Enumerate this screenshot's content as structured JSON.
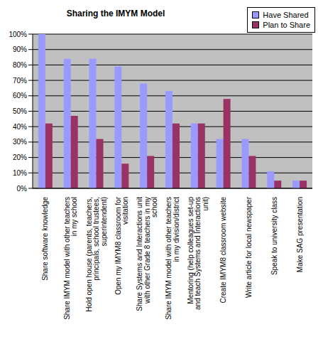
{
  "chart_data": {
    "type": "bar",
    "title": "Sharing the IMYM Model",
    "categories": [
      "Share software knowledge",
      "Share IMYM model with other teachers in my school",
      "Hold open house (parents, teachers, principals, school trustees, superintendent)",
      "Open my IMYM8 classroom for visitation",
      "Share Systems and Interactions unit with other Grade 8 teachers in my school",
      "Share IMYM model with other teachers in my division/district",
      "Mentoring (help colleagues set-up and teach Systems and Interactions unit)",
      "Create IMYM8 classroom website",
      "Write article for local newspaper",
      "Speak to university class",
      "Make SAG presentation"
    ],
    "series": [
      {
        "name": "Have Shared",
        "color": "#9999ff",
        "values": [
          100,
          84,
          84,
          79,
          68,
          63,
          42,
          32,
          32,
          11,
          5
        ]
      },
      {
        "name": "Plan to Share",
        "color": "#993366",
        "values": [
          42,
          47,
          32,
          16,
          21,
          42,
          42,
          58,
          21,
          5,
          5
        ]
      }
    ],
    "ylim": [
      0,
      100
    ],
    "yticks": [
      {
        "value": 0,
        "label": "0%"
      },
      {
        "value": 10,
        "label": "10%"
      },
      {
        "value": 20,
        "label": "20%"
      },
      {
        "value": 30,
        "label": "30%"
      },
      {
        "value": 40,
        "label": "40%"
      },
      {
        "value": 50,
        "label": "50%"
      },
      {
        "value": 60,
        "label": "60%"
      },
      {
        "value": 70,
        "label": "70%"
      },
      {
        "value": 80,
        "label": "80%"
      },
      {
        "value": 90,
        "label": "90%"
      },
      {
        "value": 100,
        "label": "100%"
      }
    ],
    "grid": true,
    "legend": "top right"
  }
}
